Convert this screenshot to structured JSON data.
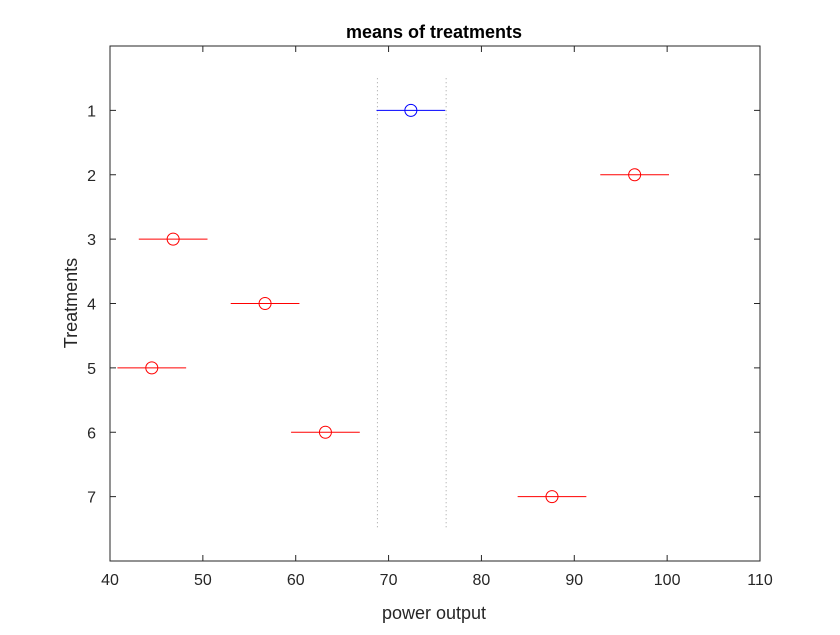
{
  "chart_data": {
    "type": "scatter",
    "title": "means of treatments",
    "xlabel": "power output",
    "ylabel": "Treatments",
    "xlim": [
      40,
      110
    ],
    "ylim": [
      0,
      8
    ],
    "y_reversed": true,
    "x_ticks": [
      40,
      50,
      60,
      70,
      80,
      90,
      100,
      110
    ],
    "y_ticks": [
      1,
      2,
      3,
      4,
      5,
      6,
      7
    ],
    "grid": false,
    "highlighted_group": 1,
    "highlight_color": "#0000ff",
    "other_color": "#ff0000",
    "comparison_interval": [
      68.8,
      76.2
    ],
    "groups": [
      {
        "label": "1",
        "mean": 72.4,
        "lower": 68.7,
        "upper": 76.1
      },
      {
        "label": "2",
        "mean": 96.5,
        "lower": 92.8,
        "upper": 100.2
      },
      {
        "label": "3",
        "mean": 46.8,
        "lower": 43.1,
        "upper": 50.5
      },
      {
        "label": "4",
        "mean": 56.7,
        "lower": 53.0,
        "upper": 60.4
      },
      {
        "label": "5",
        "mean": 44.5,
        "lower": 40.8,
        "upper": 48.2
      },
      {
        "label": "6",
        "mean": 63.2,
        "lower": 59.5,
        "upper": 66.9
      },
      {
        "label": "7",
        "mean": 87.6,
        "lower": 83.9,
        "upper": 91.3
      }
    ]
  }
}
